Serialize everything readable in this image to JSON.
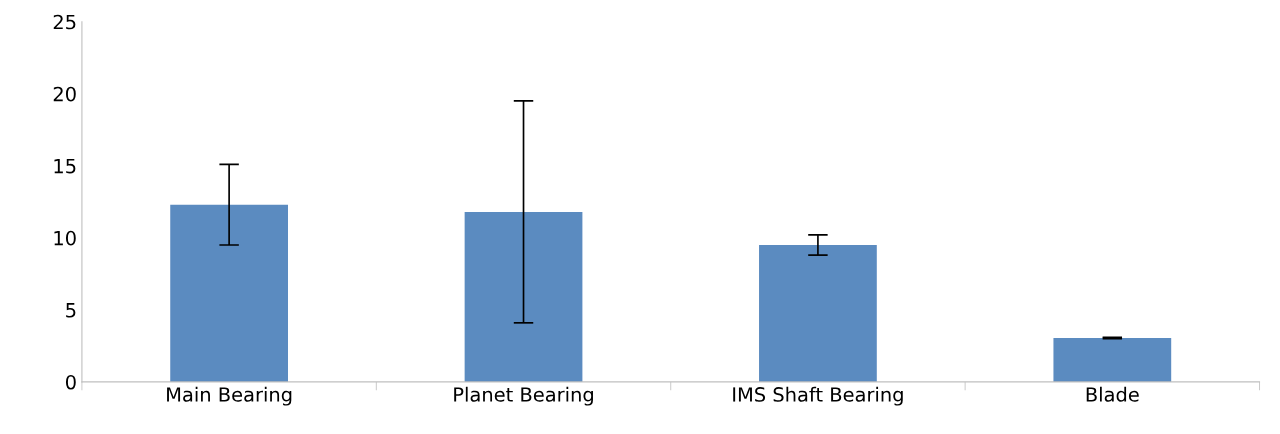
{
  "chart_data": {
    "type": "bar",
    "categories": [
      "Main Bearing",
      "Planet Bearing",
      "IMS Shaft Bearing",
      "Blade"
    ],
    "values": [
      12.3,
      11.8,
      9.5,
      3.05
    ],
    "errors": [
      2.8,
      7.7,
      0.7,
      0.05
    ],
    "color": "#5b8bc0",
    "ylim": [
      0,
      25
    ],
    "yticks": [
      0,
      5,
      10,
      15,
      20,
      25
    ],
    "grid": false
  }
}
